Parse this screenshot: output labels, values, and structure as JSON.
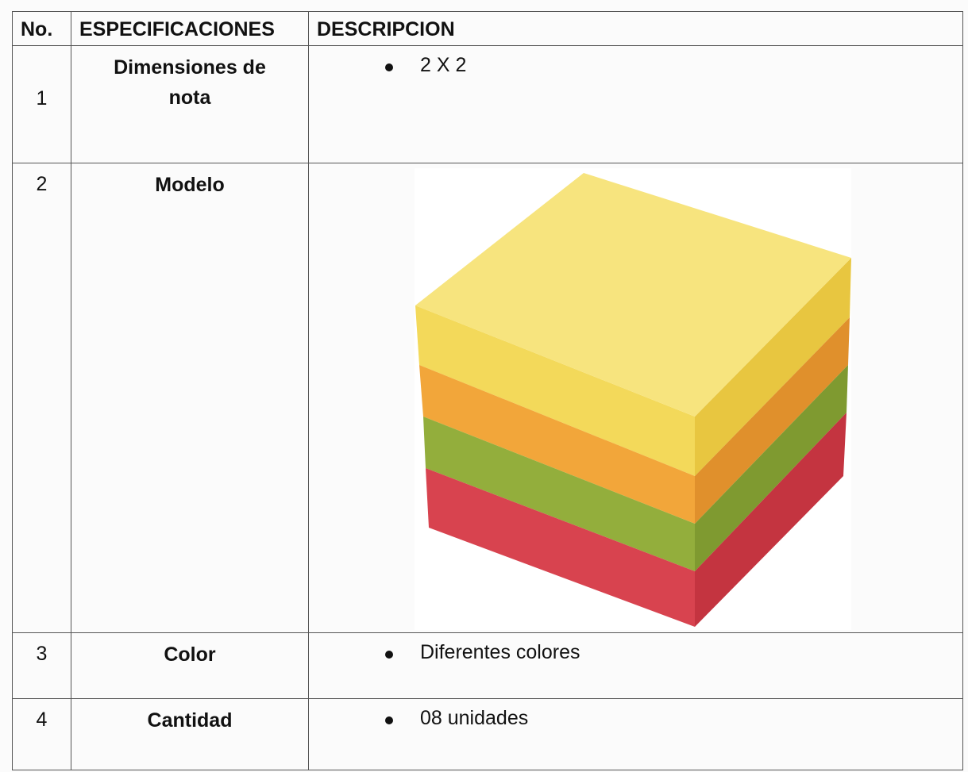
{
  "table": {
    "header": [
      "No.",
      "ESPECIFICACIONES",
      "DESCRIPCION"
    ],
    "rows": [
      {
        "no": "1",
        "spec": "Dimensiones de nota",
        "items": [
          "2 X 2"
        ]
      },
      {
        "no": "2",
        "spec": "Modelo"
      },
      {
        "no": "3",
        "spec": "Color",
        "items": [
          "Diferentes colores"
        ]
      },
      {
        "no": "4",
        "spec": "Cantidad",
        "items": [
          "08 unidades"
        ]
      }
    ]
  }
}
